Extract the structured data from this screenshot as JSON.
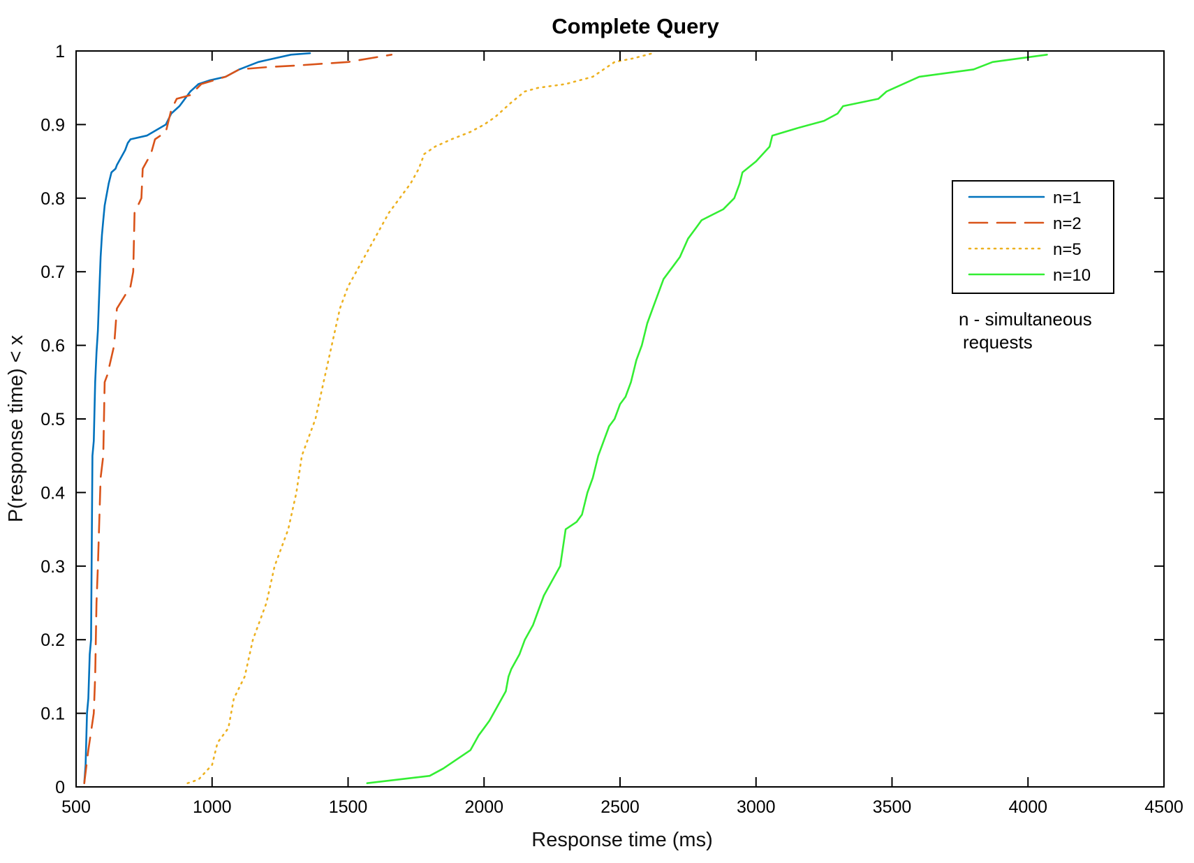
{
  "chart_data": {
    "type": "line",
    "title": "Complete Query",
    "xlabel": "Response time (ms)",
    "ylabel": "P(response time) < x",
    "xlim": [
      500,
      4500
    ],
    "ylim": [
      0,
      1
    ],
    "x_ticks": [
      500,
      1000,
      1500,
      2000,
      2500,
      3000,
      3500,
      4000,
      4500
    ],
    "x_tick_labels": [
      "500",
      "1000",
      "1500",
      "2000",
      "2500",
      "3000",
      "3500",
      "4000",
      "4500"
    ],
    "y_ticks": [
      0,
      0.1,
      0.2,
      0.3,
      0.4,
      0.5,
      0.6,
      0.7,
      0.8,
      0.9,
      1
    ],
    "y_tick_labels": [
      "0",
      "0.1",
      "0.2",
      "0.3",
      "0.4",
      "0.5",
      "0.6",
      "0.7",
      "0.8",
      "0.9",
      "1"
    ],
    "grid": false,
    "legend_position": "right",
    "annotation": [
      "n - simultaneous",
      "requests"
    ],
    "series": [
      {
        "name": "n=1",
        "color": "#0072BD",
        "style": "solid",
        "x": [
          530,
          535,
          540,
          545,
          550,
          555,
          560,
          565,
          570,
          575,
          580,
          585,
          590,
          595,
          600,
          605,
          610,
          620,
          630,
          645,
          650,
          665,
          680,
          690,
          700,
          760,
          830,
          850,
          880,
          890,
          920,
          950,
          990,
          1050,
          1100,
          1170,
          1290,
          1360
        ],
        "y": [
          0.005,
          0.03,
          0.1,
          0.12,
          0.18,
          0.2,
          0.45,
          0.47,
          0.55,
          0.59,
          0.62,
          0.67,
          0.72,
          0.75,
          0.77,
          0.79,
          0.8,
          0.82,
          0.835,
          0.84,
          0.845,
          0.855,
          0.865,
          0.875,
          0.88,
          0.885,
          0.9,
          0.915,
          0.925,
          0.93,
          0.945,
          0.955,
          0.96,
          0.965,
          0.975,
          0.985,
          0.995,
          0.997
        ]
      },
      {
        "name": "n=2",
        "color": "#D95319",
        "style": "dashed",
        "x": [
          530,
          545,
          565,
          570,
          575,
          580,
          590,
          600,
          605,
          615,
          640,
          650,
          700,
          710,
          715,
          740,
          745,
          775,
          790,
          830,
          850,
          870,
          920,
          960,
          1050,
          1100,
          1200,
          1300,
          1500,
          1660
        ],
        "y": [
          0.005,
          0.05,
          0.1,
          0.15,
          0.25,
          0.3,
          0.42,
          0.45,
          0.55,
          0.56,
          0.6,
          0.65,
          0.68,
          0.7,
          0.78,
          0.8,
          0.84,
          0.86,
          0.88,
          0.89,
          0.92,
          0.935,
          0.94,
          0.955,
          0.965,
          0.975,
          0.978,
          0.98,
          0.985,
          0.995
        ]
      },
      {
        "name": "n=5",
        "color": "#EDB120",
        "style": "dotted",
        "x": [
          910,
          950,
          1000,
          1020,
          1060,
          1080,
          1120,
          1150,
          1200,
          1230,
          1280,
          1310,
          1330,
          1350,
          1380,
          1410,
          1440,
          1470,
          1500,
          1530,
          1560,
          1590,
          1620,
          1650,
          1690,
          1730,
          1760,
          1780,
          1820,
          1880,
          1950,
          2000,
          2040,
          2100,
          2150,
          2200,
          2300,
          2400,
          2480,
          2550,
          2620
        ],
        "y": [
          0.005,
          0.01,
          0.03,
          0.06,
          0.08,
          0.12,
          0.15,
          0.2,
          0.25,
          0.3,
          0.35,
          0.4,
          0.45,
          0.47,
          0.5,
          0.55,
          0.6,
          0.65,
          0.68,
          0.7,
          0.72,
          0.74,
          0.76,
          0.78,
          0.8,
          0.82,
          0.84,
          0.86,
          0.87,
          0.88,
          0.89,
          0.9,
          0.91,
          0.93,
          0.945,
          0.95,
          0.955,
          0.965,
          0.985,
          0.99,
          0.997
        ]
      },
      {
        "name": "n=10",
        "color": "#33EE33",
        "style": "solid",
        "x": [
          1570,
          1800,
          1850,
          1950,
          1980,
          2000,
          2020,
          2050,
          2080,
          2090,
          2100,
          2130,
          2150,
          2180,
          2200,
          2220,
          2250,
          2280,
          2300,
          2340,
          2360,
          2380,
          2400,
          2420,
          2440,
          2460,
          2480,
          2500,
          2520,
          2540,
          2560,
          2580,
          2600,
          2620,
          2640,
          2660,
          2680,
          2700,
          2720,
          2750,
          2780,
          2800,
          2880,
          2920,
          2940,
          2950,
          3000,
          3050,
          3060,
          3150,
          3250,
          3300,
          3320,
          3450,
          3480,
          3600,
          3800,
          3870,
          4070
        ],
        "y": [
          0.005,
          0.015,
          0.025,
          0.05,
          0.07,
          0.08,
          0.09,
          0.11,
          0.13,
          0.15,
          0.16,
          0.18,
          0.2,
          0.22,
          0.24,
          0.26,
          0.28,
          0.3,
          0.35,
          0.36,
          0.37,
          0.4,
          0.42,
          0.45,
          0.47,
          0.49,
          0.5,
          0.52,
          0.53,
          0.55,
          0.58,
          0.6,
          0.63,
          0.65,
          0.67,
          0.69,
          0.7,
          0.71,
          0.72,
          0.745,
          0.76,
          0.77,
          0.785,
          0.8,
          0.82,
          0.835,
          0.85,
          0.87,
          0.885,
          0.895,
          0.905,
          0.915,
          0.925,
          0.935,
          0.945,
          0.965,
          0.975,
          0.985,
          0.995
        ]
      }
    ]
  }
}
